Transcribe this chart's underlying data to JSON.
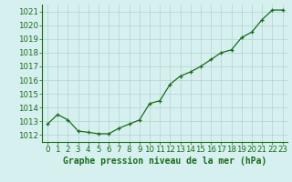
{
  "x": [
    0,
    1,
    2,
    3,
    4,
    5,
    6,
    7,
    8,
    9,
    10,
    11,
    12,
    13,
    14,
    15,
    16,
    17,
    18,
    19,
    20,
    21,
    22,
    23
  ],
  "y": [
    1012.8,
    1013.5,
    1013.1,
    1012.3,
    1012.2,
    1012.1,
    1012.1,
    1012.5,
    1012.8,
    1013.1,
    1014.3,
    1014.5,
    1015.7,
    1016.3,
    1016.6,
    1017.0,
    1017.5,
    1018.0,
    1018.2,
    1019.1,
    1019.5,
    1020.4,
    1021.1,
    1021.1
  ],
  "line_color": "#1a6b1a",
  "marker": "+",
  "bg_color": "#d6f0ef",
  "grid_color": "#aed4d0",
  "xlabel": "Graphe pression niveau de la mer (hPa)",
  "xlabel_color": "#1a6b1a",
  "tick_color": "#1a6b1a",
  "spine_color": "#1a6b1a",
  "ylim": [
    1011.5,
    1021.5
  ],
  "yticks": [
    1012,
    1013,
    1014,
    1015,
    1016,
    1017,
    1018,
    1019,
    1020,
    1021
  ],
  "xlim": [
    -0.5,
    23.5
  ],
  "xticks": [
    0,
    1,
    2,
    3,
    4,
    5,
    6,
    7,
    8,
    9,
    10,
    11,
    12,
    13,
    14,
    15,
    16,
    17,
    18,
    19,
    20,
    21,
    22,
    23
  ],
  "xlabel_fontsize": 7.0,
  "tick_fontsize": 6.2,
  "linewidth": 0.9,
  "markersize": 3.5,
  "markeredgewidth": 0.9
}
